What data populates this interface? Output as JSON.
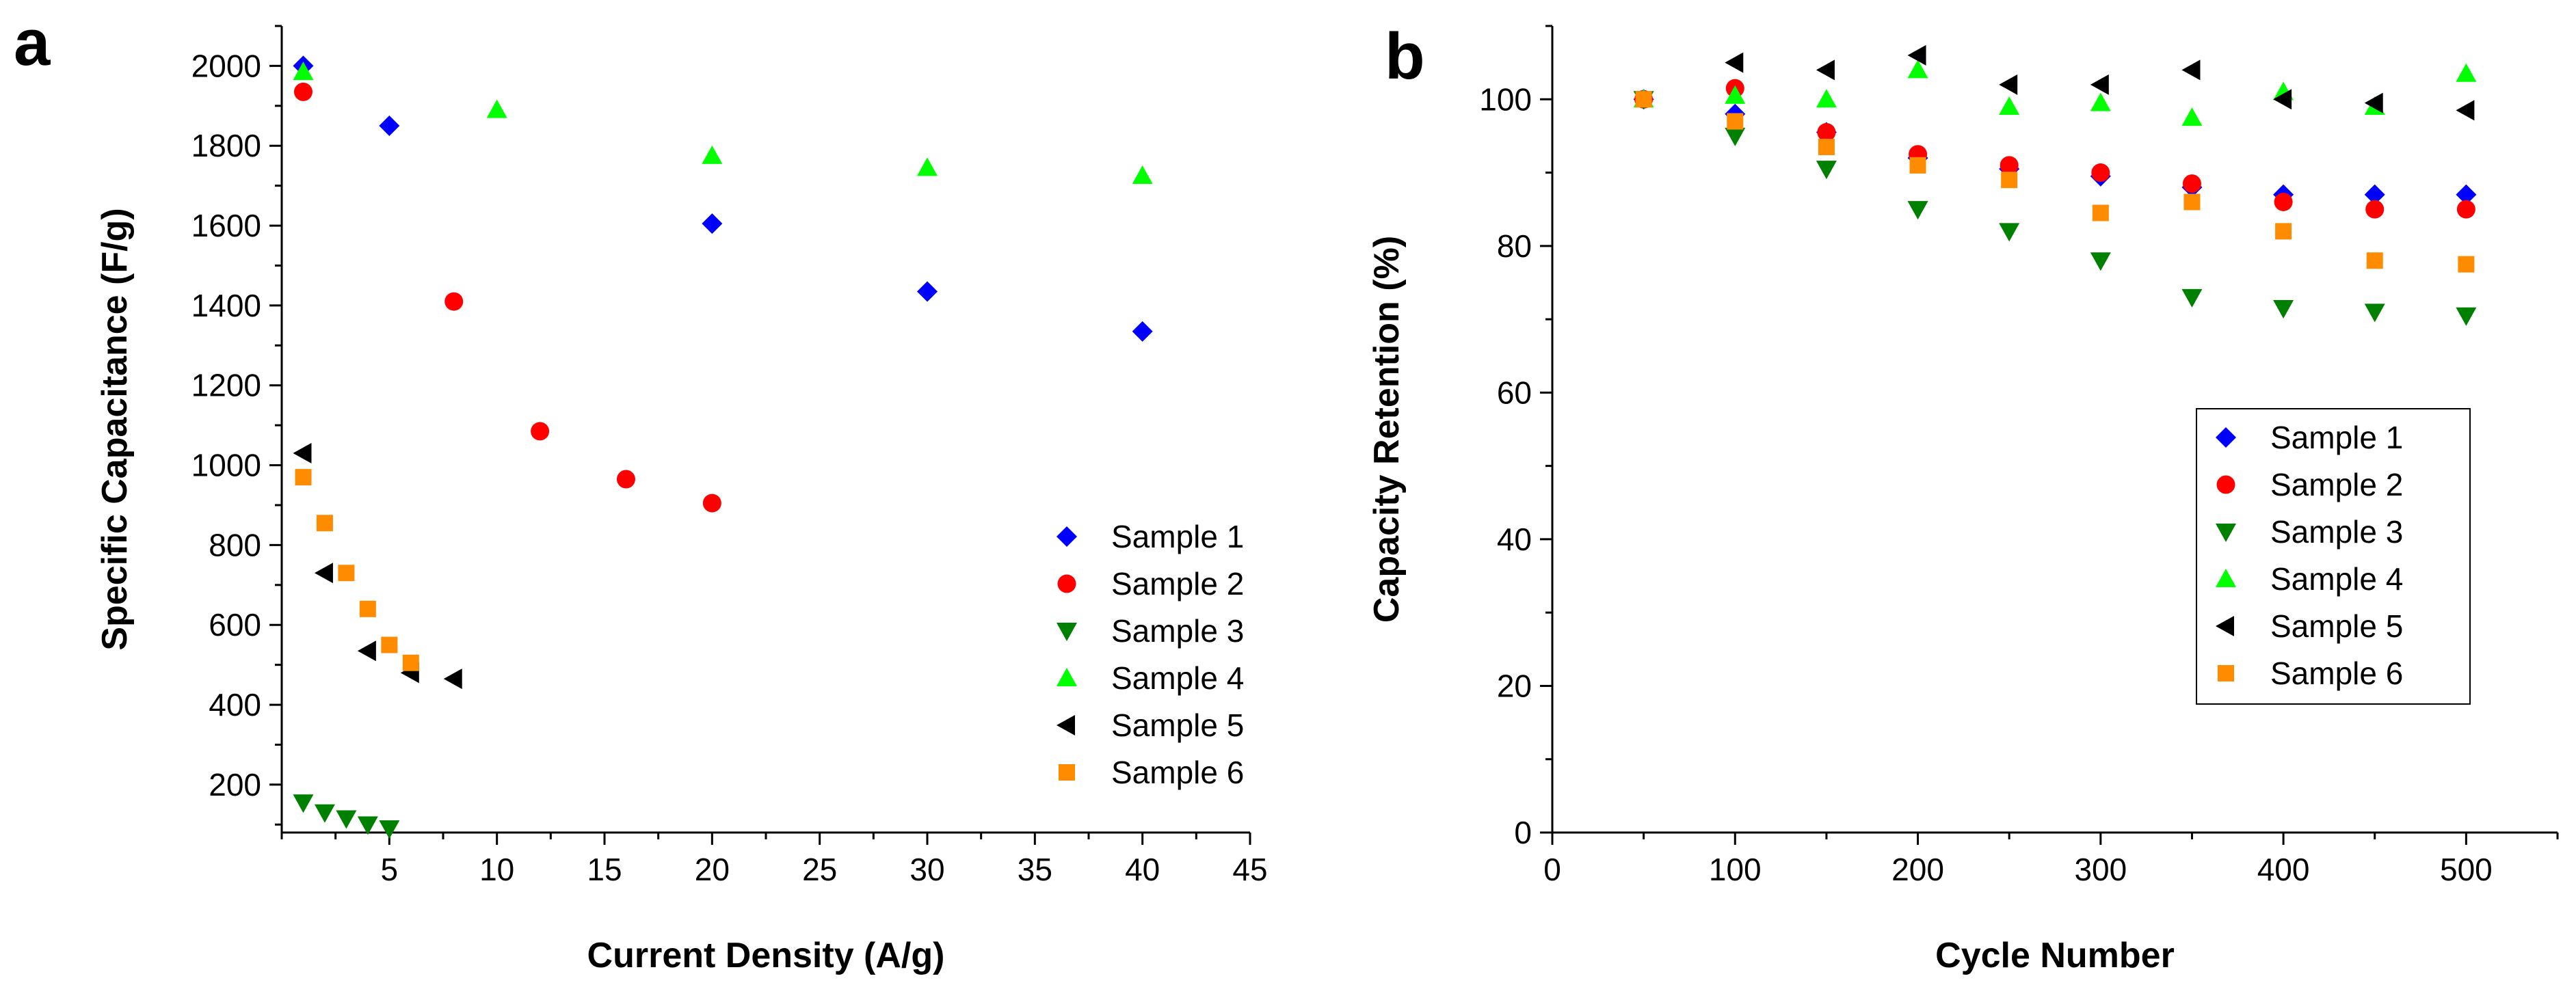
{
  "chart_data": [
    {
      "type": "scatter",
      "panel_label": "a",
      "xlabel": "Current Density (A/g)",
      "ylabel": "Specific Capacitance (F/g)",
      "xlim": [
        0,
        45
      ],
      "ylim": [
        80,
        2100
      ],
      "xticks": [
        5,
        10,
        15,
        20,
        25,
        30,
        35,
        40,
        45
      ],
      "yticks": [
        200,
        400,
        600,
        800,
        1000,
        1200,
        1400,
        1600,
        1800,
        2000
      ],
      "grid": false,
      "legend_position": "bottom-right",
      "series": [
        {
          "name": "Sample 1",
          "marker": "diamond",
          "color": "#0000ff",
          "x": [
            1,
            5,
            20,
            30,
            40
          ],
          "y": [
            2000,
            1850,
            1605,
            1435,
            1335
          ]
        },
        {
          "name": "Sample 2",
          "marker": "circle",
          "color": "#ff0000",
          "x": [
            1,
            8,
            12,
            16,
            20
          ],
          "y": [
            1935,
            1410,
            1085,
            965,
            905
          ]
        },
        {
          "name": "Sample 3",
          "marker": "triangle-down",
          "color": "#008000",
          "x": [
            1,
            2,
            3,
            4,
            5
          ],
          "y": [
            155,
            130,
            115,
            100,
            90
          ]
        },
        {
          "name": "Sample 4",
          "marker": "triangle-up",
          "color": "#00ff00",
          "x": [
            1,
            10,
            20,
            30,
            40
          ],
          "y": [
            1985,
            1890,
            1775,
            1745,
            1725
          ]
        },
        {
          "name": "Sample 5",
          "marker": "triangle-left",
          "color": "#000000",
          "x": [
            1,
            2,
            4,
            6,
            8
          ],
          "y": [
            1030,
            730,
            535,
            480,
            465
          ]
        },
        {
          "name": "Sample 6",
          "marker": "square",
          "color": "#ff8c00",
          "x": [
            1,
            2,
            3,
            4,
            5,
            6
          ],
          "y": [
            970,
            855,
            730,
            640,
            550,
            505
          ]
        }
      ]
    },
    {
      "type": "scatter",
      "panel_label": "b",
      "xlabel": "Cycle Number",
      "ylabel": "Capacity Retention (%)",
      "xlim": [
        0,
        550
      ],
      "ylim": [
        0,
        110
      ],
      "xticks": [
        0,
        100,
        200,
        300,
        400,
        500
      ],
      "yticks": [
        0,
        20,
        40,
        60,
        80,
        100
      ],
      "grid": false,
      "legend_position": "bottom-right",
      "series": [
        {
          "name": "Sample 1",
          "marker": "diamond",
          "color": "#0000ff",
          "x": [
            50,
            100,
            150,
            200,
            250,
            300,
            350,
            400,
            450,
            500
          ],
          "y": [
            100,
            98,
            95.5,
            92,
            90.5,
            89.5,
            88,
            87,
            87,
            87
          ]
        },
        {
          "name": "Sample 2",
          "marker": "circle",
          "color": "#ff0000",
          "x": [
            50,
            100,
            150,
            200,
            250,
            300,
            350,
            400,
            450,
            500
          ],
          "y": [
            100,
            101.5,
            95.5,
            92.5,
            91,
            90,
            88.5,
            86,
            85,
            85
          ]
        },
        {
          "name": "Sample 3",
          "marker": "triangle-down",
          "color": "#008000",
          "x": [
            50,
            100,
            150,
            200,
            250,
            300,
            350,
            400,
            450,
            500
          ],
          "y": [
            100,
            95,
            90.5,
            85,
            82,
            78,
            73,
            71.5,
            71,
            70.5
          ]
        },
        {
          "name": "Sample 4",
          "marker": "triangle-up",
          "color": "#00ff00",
          "x": [
            50,
            100,
            150,
            200,
            250,
            300,
            350,
            400,
            450,
            500
          ],
          "y": [
            100,
            100.5,
            100,
            104,
            99,
            99.5,
            97.5,
            101,
            99,
            103.5
          ]
        },
        {
          "name": "Sample 5",
          "marker": "triangle-left",
          "color": "#000000",
          "x": [
            100,
            150,
            200,
            250,
            300,
            350,
            400,
            450,
            500
          ],
          "y": [
            105,
            104,
            106,
            102,
            102,
            104,
            100,
            99.5,
            98.5
          ]
        },
        {
          "name": "Sample 6",
          "marker": "square",
          "color": "#ff8c00",
          "x": [
            50,
            100,
            150,
            200,
            250,
            300,
            350,
            400,
            450,
            500
          ],
          "y": [
            100,
            97,
            93.5,
            91,
            89,
            84.5,
            86,
            82,
            78,
            77.5
          ]
        }
      ]
    }
  ]
}
